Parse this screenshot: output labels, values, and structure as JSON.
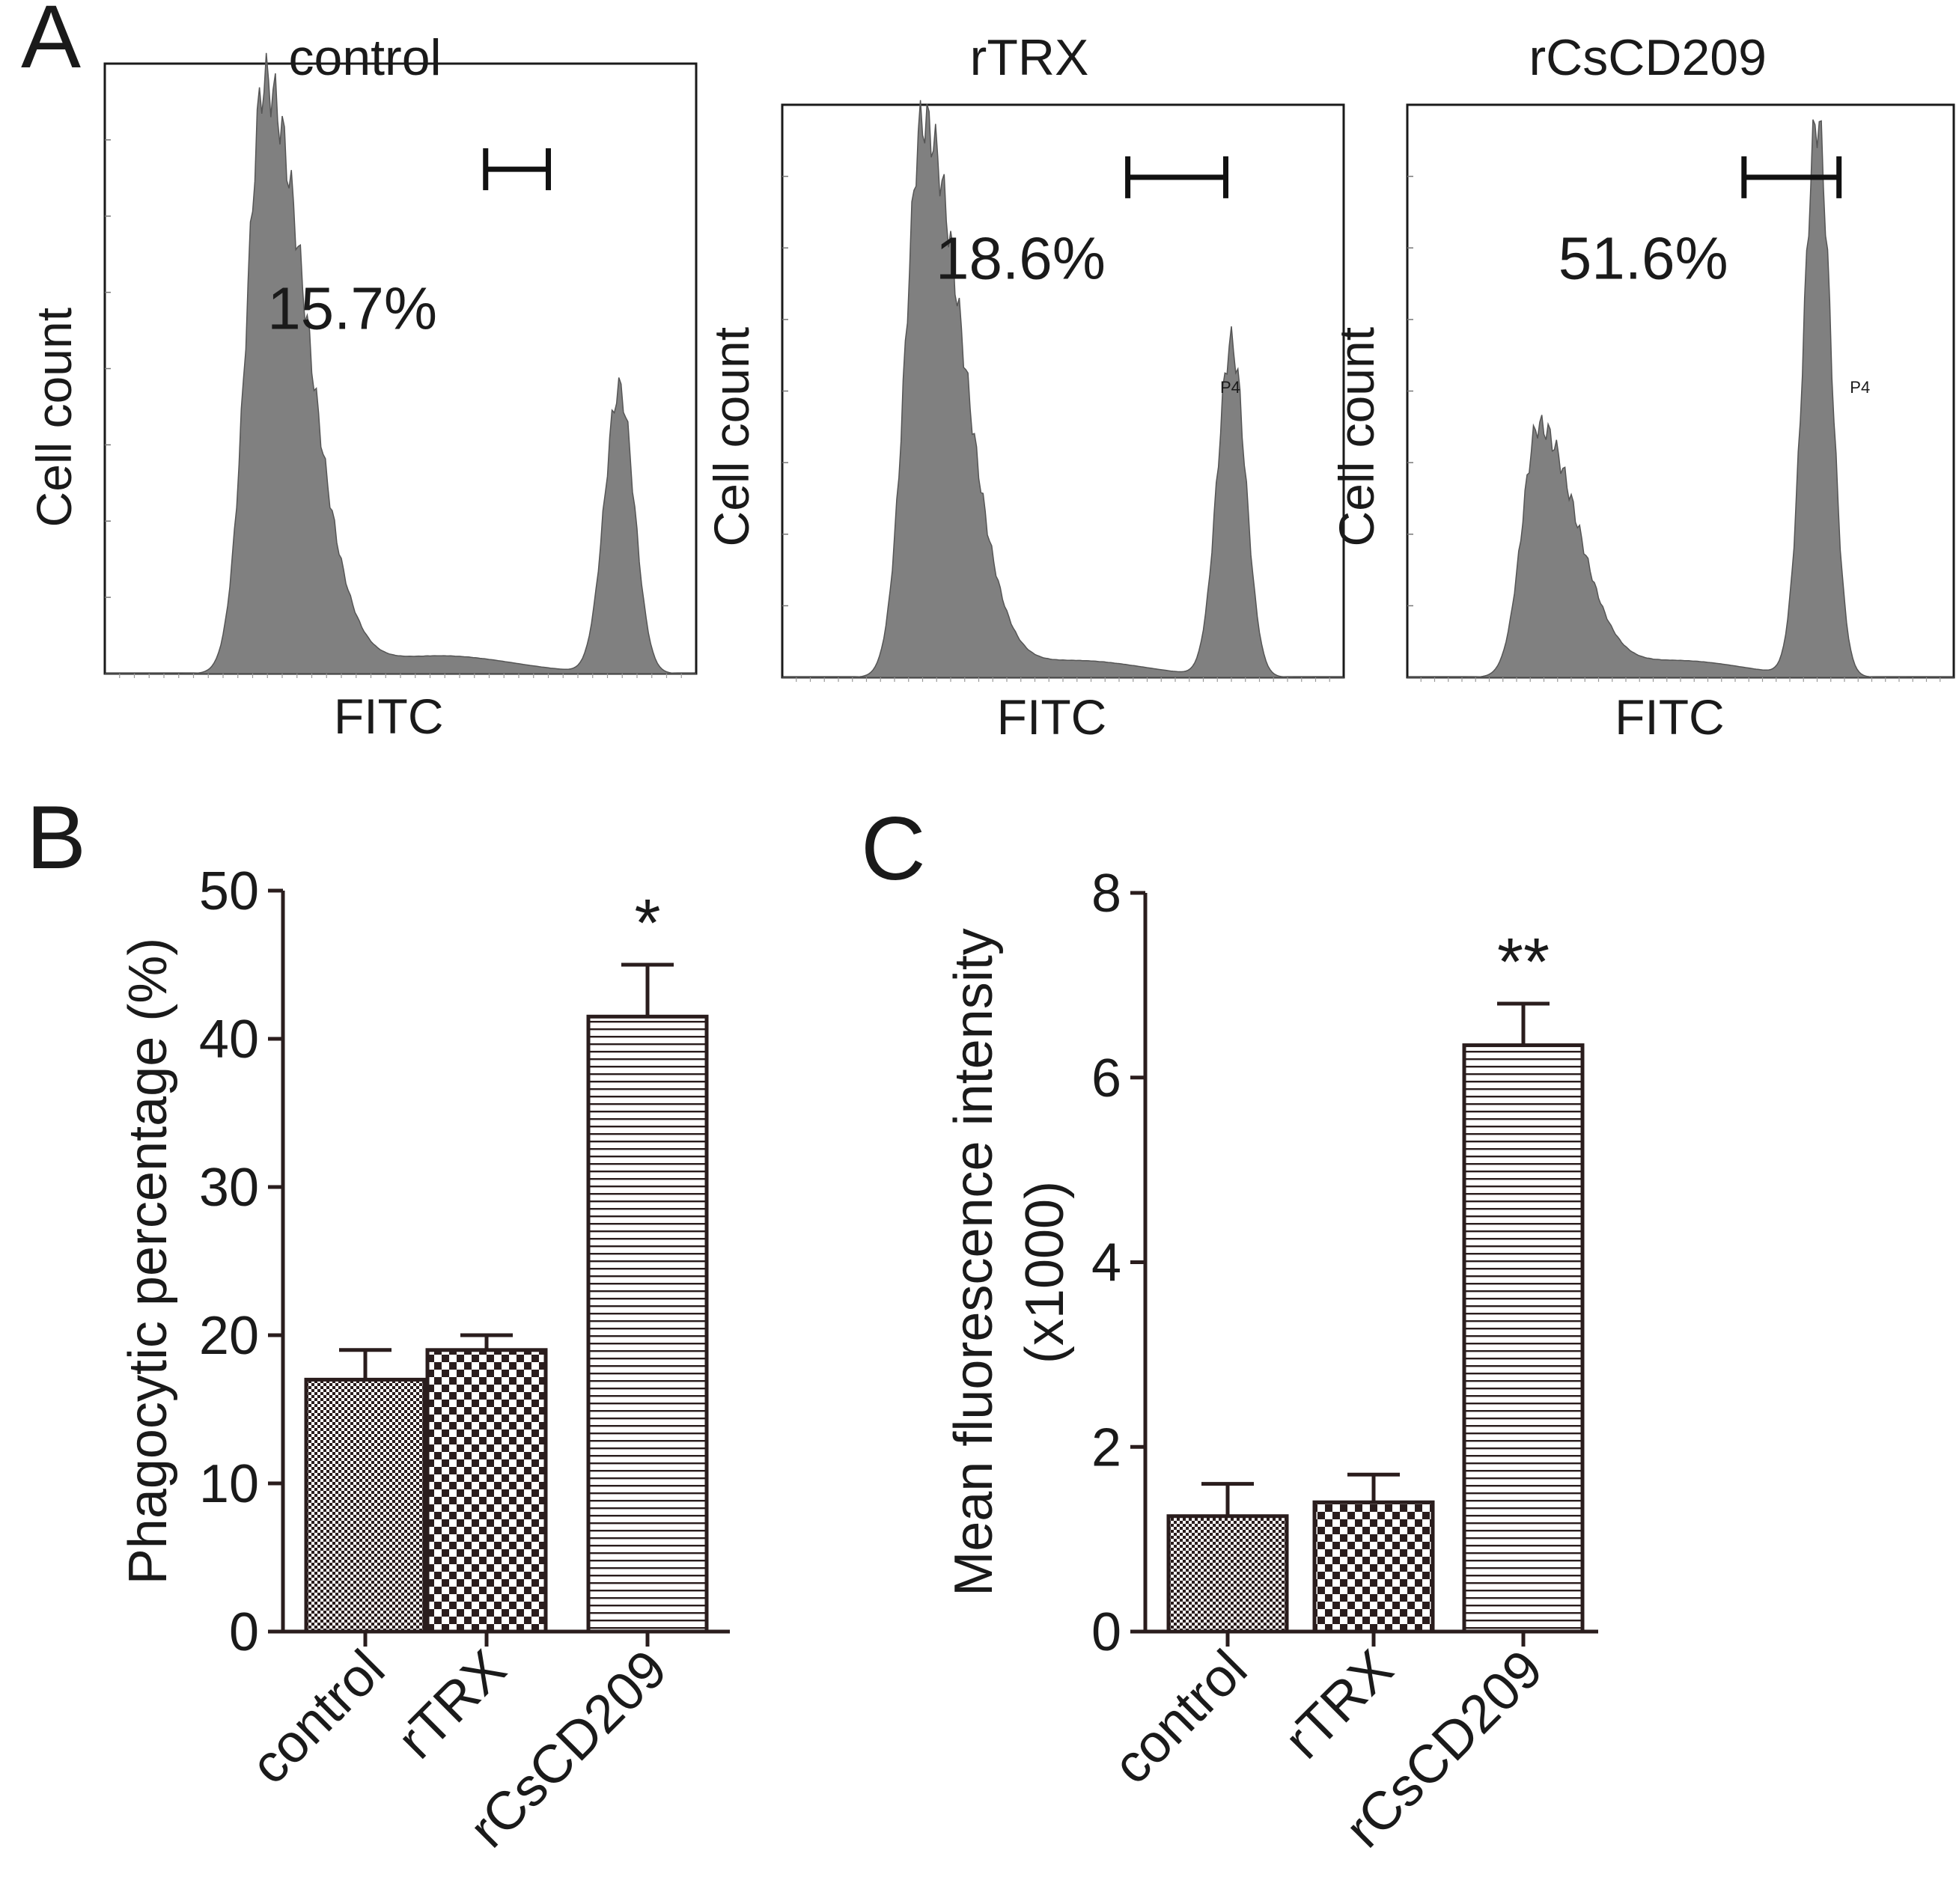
{
  "figure": {
    "panel_labels": [
      "A",
      "B",
      "C"
    ],
    "colors": {
      "histogram_fill": "#808080",
      "ink": "#1a1a1a",
      "bar_stroke": "#2a1d1d",
      "background": "#ffffff"
    }
  },
  "chart_data": [
    {
      "type": "area",
      "panel": "A",
      "title": "control",
      "xlabel": "FITC",
      "ylabel": "Cell count",
      "gate_label": "15.7%",
      "gate_range_fraction": [
        0.7,
        1.0
      ],
      "peaks": [
        {
          "position": 0.27,
          "relative_height": 1.0
        },
        {
          "position": 0.87,
          "relative_height": 0.48
        }
      ]
    },
    {
      "type": "area",
      "panel": "A",
      "title": "rTRX",
      "xlabel": "FITC",
      "ylabel": "Cell count",
      "gate_label": "18.6%",
      "gate_tag": "P4",
      "gate_range_fraction": [
        0.64,
        1.0
      ],
      "peaks": [
        {
          "position": 0.25,
          "relative_height": 1.0
        },
        {
          "position": 0.8,
          "relative_height": 0.6
        }
      ]
    },
    {
      "type": "area",
      "panel": "A",
      "title": "rCsCD209",
      "xlabel": "FITC",
      "ylabel": "Cell count",
      "gate_label": "51.6%",
      "gate_tag": "P4",
      "gate_range_fraction": [
        0.64,
        1.0
      ],
      "peaks": [
        {
          "position": 0.24,
          "relative_height": 0.45
        },
        {
          "position": 0.75,
          "relative_height": 1.0
        }
      ]
    },
    {
      "type": "bar",
      "panel": "B",
      "categories": [
        "control",
        "rTRX",
        "rCsCD209"
      ],
      "values": [
        17,
        19,
        41.5
      ],
      "errors": [
        2,
        1,
        3.5
      ],
      "patterns": [
        "fine-check",
        "coarse-check",
        "h-lines"
      ],
      "significance": [
        "",
        "",
        "*"
      ],
      "ylabel": "Phagocytic percentage (%)",
      "xlabel": "",
      "ylim": [
        0,
        50
      ],
      "yticks": [
        0,
        10,
        20,
        30,
        40,
        50
      ]
    },
    {
      "type": "bar",
      "panel": "C",
      "categories": [
        "control",
        "rTRX",
        "rCsCD209"
      ],
      "values": [
        1.25,
        1.4,
        6.35
      ],
      "errors": [
        0.35,
        0.3,
        0.45
      ],
      "patterns": [
        "fine-check",
        "coarse-check",
        "h-lines"
      ],
      "significance": [
        "",
        "",
        "**"
      ],
      "ylabel": "Mean fluorescence intensity",
      "ylabel2": "(x1000)",
      "xlabel": "",
      "ylim": [
        0,
        8
      ],
      "yticks": [
        0,
        2,
        4,
        6,
        8
      ]
    }
  ]
}
